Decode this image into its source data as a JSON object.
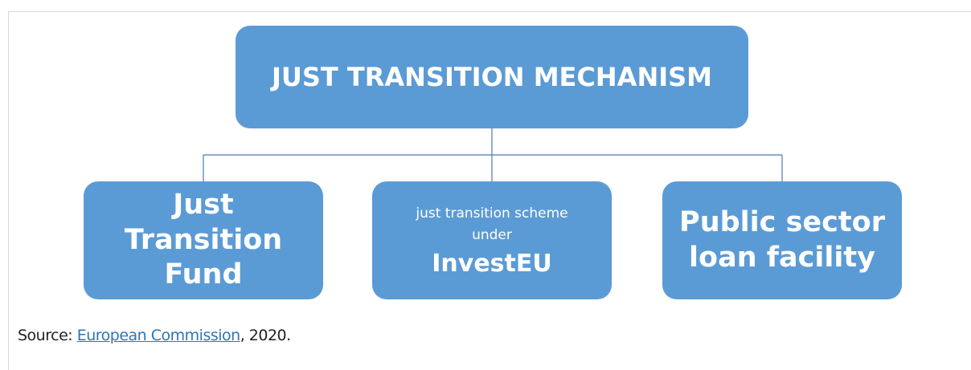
{
  "nodes": [
    {
      "label": "JUST TRANSITION MECHANISM"
    },
    {
      "label": "Just Transition Fund"
    },
    {
      "label": "just transition scheme under",
      "label_bold": "InvestEU"
    },
    {
      "label": "Public sector loan facility"
    }
  ],
  "source": {
    "prefix": "Source:",
    "link": "European Commission",
    "suffix": ", 2020."
  }
}
